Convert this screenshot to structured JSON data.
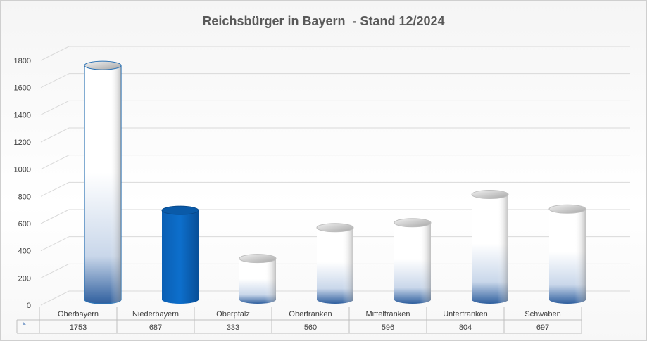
{
  "chart_data": {
    "type": "bar",
    "title": "Reichsbürger in Bayern  - Stand 12/2024",
    "categories": [
      "Oberbayern",
      "Niederbayern",
      "Oberpfalz",
      "Oberfranken",
      "Mittelfranken",
      "Unterfranken",
      "Schwaben"
    ],
    "values": [
      1753,
      687,
      333,
      560,
      596,
      804,
      697
    ],
    "highlighted_category": "Niederbayern",
    "ylim": [
      0,
      1800
    ],
    "yticks": [
      0,
      200,
      400,
      600,
      800,
      1000,
      1200,
      1400,
      1600,
      1800
    ],
    "grid": true,
    "data_table": true,
    "colors": {
      "bar_light": "#ffffff",
      "bar_gradient_bottom": "#2f5f9e",
      "bar_highlight": "#0a5fb4",
      "bar_outline_oberbayern": "#2e74b5",
      "gridline": "#d9d9d9",
      "title": "#595959"
    }
  }
}
